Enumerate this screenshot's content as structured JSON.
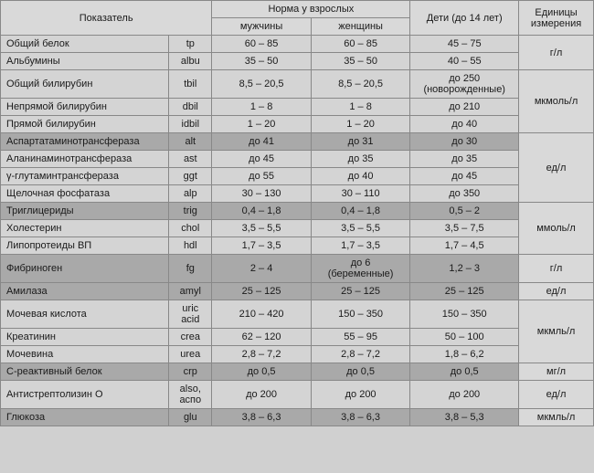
{
  "headers": {
    "pokazatel": "Показатель",
    "norma": "Норма у взрослых",
    "men": "мужчины",
    "women": "женщины",
    "kids": "Дети (до 14 лет)",
    "units": "Единицы измерения"
  },
  "rows": [
    {
      "p": "Общий белок",
      "c": "tp",
      "m": "60 – 85",
      "w": "60 – 85",
      "k": "45 – 75",
      "shade": "l"
    },
    {
      "p": "Альбумины",
      "c": "albu",
      "m": "35 – 50",
      "w": "35 – 50",
      "k": "40 – 55",
      "shade": "l"
    },
    {
      "p": "Общий билирубин",
      "c": "tbil",
      "m": "8,5 – 20,5",
      "w": "8,5 – 20,5",
      "k": "до 250 (новорожденные)",
      "shade": "l"
    },
    {
      "p": "Непрямой билирубин",
      "c": "dbil",
      "m": "1 – 8",
      "w": "1 – 8",
      "k": "до 210",
      "shade": "l"
    },
    {
      "p": "Прямой билирубин",
      "c": "idbil",
      "m": "1 – 20",
      "w": "1 – 20",
      "k": "до 40",
      "shade": "l"
    },
    {
      "p": "Аспартатаминотрансфераза",
      "c": "alt",
      "m": "до 41",
      "w": "до 31",
      "k": "до 30",
      "shade": "d"
    },
    {
      "p": "Аланинаминотрансфераза",
      "c": "ast",
      "m": "до 45",
      "w": "до 35",
      "k": "до 35",
      "shade": "l"
    },
    {
      "p": "γ-глутаминтрансфераза",
      "c": "ggt",
      "m": "до 55",
      "w": "до 40",
      "k": "до 45",
      "shade": "l"
    },
    {
      "p": "Щелочная фосфатаза",
      "c": "alp",
      "m": "30 – 130",
      "w": "30 – 110",
      "k": "до 350",
      "shade": "l"
    },
    {
      "p": "Триглицериды",
      "c": "trig",
      "m": "0,4 – 1,8",
      "w": "0,4 – 1,8",
      "k": "0,5 – 2",
      "shade": "d"
    },
    {
      "p": "Холестерин",
      "c": "chol",
      "m": "3,5 – 5,5",
      "w": "3,5 – 5,5",
      "k": "3,5 – 7,5",
      "shade": "l"
    },
    {
      "p": "Липопротеиды ВП",
      "c": "hdl",
      "m": "1,7 – 3,5",
      "w": "1,7 – 3,5",
      "k": "1,7 – 4,5",
      "shade": "l"
    },
    {
      "p": "Фибриноген",
      "c": "fg",
      "m": "2 – 4",
      "w": "до 6 (беременные)",
      "k": "1,2 – 3",
      "shade": "d"
    },
    {
      "p": "Амилаза",
      "c": "amyl",
      "m": "25 – 125",
      "w": "25 – 125",
      "k": "25 – 125",
      "shade": "d"
    },
    {
      "p": "Мочевая кислота",
      "c": "uric acid",
      "m": "210 – 420",
      "w": "150 – 350",
      "k": "150 – 350",
      "shade": "l"
    },
    {
      "p": "Креатинин",
      "c": "crea",
      "m": "62 – 120",
      "w": "55 – 95",
      "k": "50 – 100",
      "shade": "l"
    },
    {
      "p": "Мочевина",
      "c": "urea",
      "m": "2,8 – 7,2",
      "w": "2,8 – 7,2",
      "k": "1,8 – 6,2",
      "shade": "l"
    },
    {
      "p": "С-реактивный белок",
      "c": "crp",
      "m": "до 0,5",
      "w": "до 0,5",
      "k": "до 0,5",
      "shade": "d"
    },
    {
      "p": "Антистрептолизин О",
      "c": "also, aспо",
      "m": "до 200",
      "w": "до 200",
      "k": "до 200",
      "shade": "l"
    },
    {
      "p": "Глюкоза",
      "c": "glu",
      "m": "3,8 – 6,3",
      "w": "3,8 – 6,3",
      "k": "3,8 – 5,3",
      "shade": "d"
    }
  ],
  "units": [
    {
      "text": "г/л",
      "span": 2
    },
    {
      "text": "мкмоль/л",
      "span": 3
    },
    {
      "text": "ед/л",
      "span": 4
    },
    {
      "text": "ммоль/л",
      "span": 3
    },
    {
      "text": "г/л",
      "span": 1
    },
    {
      "text": "ед/л",
      "span": 1
    },
    {
      "text": "мкмль/л",
      "span": 3
    },
    {
      "text": "мг/л",
      "span": 1
    },
    {
      "text": "ед/л",
      "span": 1
    },
    {
      "text": "мкмль/л",
      "span": 1
    }
  ]
}
